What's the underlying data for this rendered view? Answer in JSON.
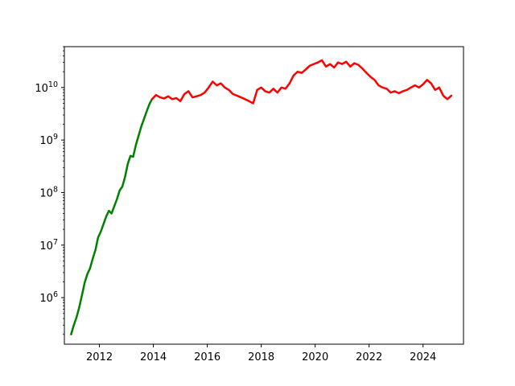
{
  "chart_data": {
    "type": "line",
    "title": "",
    "xlabel": "",
    "ylabel": "",
    "grid": false,
    "legend": "none",
    "x_axis": {
      "type": "date-year",
      "range": [
        2010.7,
        2025.5
      ],
      "ticks": [
        "2012",
        "2014",
        "2016",
        "2018",
        "2020",
        "2022",
        "2024"
      ]
    },
    "y_axis": {
      "scale": "log",
      "range": [
        130000,
        60000000000
      ],
      "ticks": [
        {
          "value": 1000000,
          "label_base": "10",
          "label_exp": "6"
        },
        {
          "value": 10000000,
          "label_base": "10",
          "label_exp": "7"
        },
        {
          "value": 100000000,
          "label_base": "10",
          "label_exp": "8"
        },
        {
          "value": 1000000000,
          "label_base": "10",
          "label_exp": "9"
        },
        {
          "value": 10000000000,
          "label_base": "10",
          "label_exp": "10"
        }
      ]
    },
    "series": [
      {
        "color": "#008000",
        "x": [
          2010.95,
          2011.05,
          2011.15,
          2011.25,
          2011.35,
          2011.45,
          2011.55,
          2011.65,
          2011.75,
          2011.85,
          2011.95,
          2012.05,
          2012.15,
          2012.25,
          2012.35,
          2012.45,
          2012.55,
          2012.65,
          2012.75,
          2012.85,
          2012.95,
          2013.05,
          2013.15,
          2013.25,
          2013.35,
          2013.45,
          2013.55,
          2013.65,
          2013.75,
          2013.85,
          2013.95
        ],
        "y": [
          200000,
          300000,
          420000,
          650000,
          1100000,
          1900000,
          2800000,
          3600000,
          5500000,
          8000000,
          14000000,
          18000000,
          25000000,
          35000000,
          45000000,
          40000000,
          55000000,
          75000000,
          110000000,
          130000000,
          200000000,
          350000000,
          500000000,
          480000000,
          800000000,
          1200000000,
          1800000000,
          2500000000,
          3500000000,
          4800000000,
          6000000000
        ]
      },
      {
        "color": "#ff0000",
        "x": [
          2013.95,
          2014.1,
          2014.25,
          2014.4,
          2014.55,
          2014.7,
          2014.85,
          2015.0,
          2015.15,
          2015.3,
          2015.45,
          2015.6,
          2015.75,
          2015.9,
          2016.05,
          2016.2,
          2016.35,
          2016.5,
          2016.65,
          2016.8,
          2016.95,
          2017.1,
          2017.25,
          2017.4,
          2017.55,
          2017.7,
          2017.85,
          2018.0,
          2018.15,
          2018.3,
          2018.45,
          2018.6,
          2018.75,
          2018.9,
          2019.05,
          2019.2,
          2019.35,
          2019.5,
          2019.65,
          2019.8,
          2019.95,
          2020.1,
          2020.25,
          2020.4,
          2020.55,
          2020.7,
          2020.85,
          2021.0,
          2021.15,
          2021.3,
          2021.45,
          2021.6,
          2021.75,
          2021.9,
          2022.05,
          2022.2,
          2022.35,
          2022.5,
          2022.65,
          2022.8,
          2022.95,
          2023.1,
          2023.25,
          2023.4,
          2023.55,
          2023.7,
          2023.85,
          2024.0,
          2024.15,
          2024.3,
          2024.45,
          2024.6,
          2024.75,
          2024.9,
          2025.05
        ],
        "y": [
          6000000000,
          7200000000,
          6500000000,
          6200000000,
          6800000000,
          6000000000,
          6300000000,
          5500000000,
          7500000000,
          8500000000,
          6500000000,
          6800000000,
          7200000000,
          8000000000,
          10000000000,
          13000000000,
          11000000000,
          12000000000,
          10000000000,
          9000000000,
          7500000000,
          7000000000,
          6500000000,
          6000000000,
          5500000000,
          5000000000,
          9000000000,
          10000000000,
          8500000000,
          8000000000,
          9500000000,
          8000000000,
          10000000000,
          9500000000,
          12000000000,
          17000000000,
          20000000000,
          19000000000,
          22000000000,
          26000000000,
          28000000000,
          30000000000,
          33000000000,
          25000000000,
          28000000000,
          24000000000,
          30000000000,
          28000000000,
          31000000000,
          25000000000,
          29000000000,
          27000000000,
          23000000000,
          19000000000,
          16000000000,
          14000000000,
          11000000000,
          10000000000,
          9500000000,
          8000000000,
          8500000000,
          7800000000,
          8500000000,
          9000000000,
          10000000000,
          11000000000,
          10000000000,
          11500000000,
          14000000000,
          12000000000,
          9000000000,
          10000000000,
          7000000000,
          6000000000,
          7000000000
        ]
      }
    ]
  }
}
